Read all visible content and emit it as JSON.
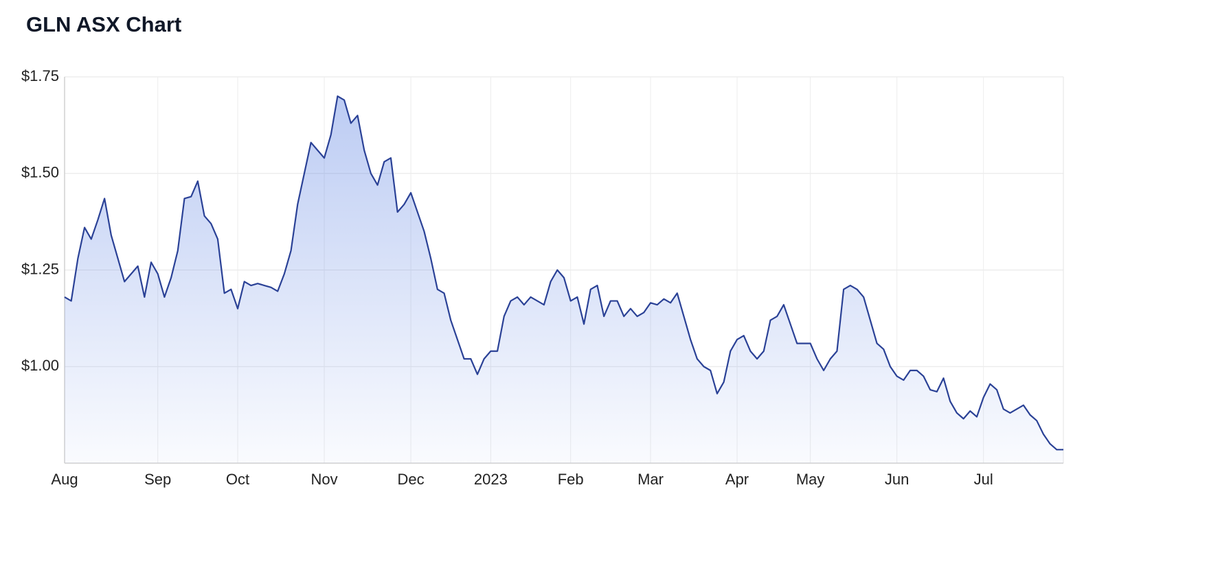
{
  "chart_data": {
    "type": "area-line",
    "title": "GLN ASX Chart",
    "categories": [
      "Aug",
      null,
      null,
      null,
      null,
      null,
      null,
      null,
      null,
      null,
      null,
      null,
      null,
      null,
      "Sep",
      null,
      null,
      null,
      null,
      null,
      null,
      null,
      null,
      null,
      null,
      null,
      "Oct",
      null,
      null,
      null,
      null,
      null,
      null,
      null,
      null,
      null,
      null,
      null,
      null,
      "Nov",
      null,
      null,
      null,
      null,
      null,
      null,
      null,
      null,
      null,
      null,
      null,
      null,
      "Dec",
      null,
      null,
      null,
      null,
      null,
      null,
      null,
      null,
      null,
      null,
      null,
      "2023",
      null,
      null,
      null,
      null,
      null,
      null,
      null,
      null,
      null,
      null,
      null,
      "Feb",
      null,
      null,
      null,
      null,
      null,
      null,
      null,
      null,
      null,
      null,
      null,
      "Mar",
      null,
      null,
      null,
      null,
      null,
      null,
      null,
      null,
      null,
      null,
      null,
      null,
      "Apr",
      null,
      null,
      null,
      null,
      null,
      null,
      null,
      null,
      null,
      null,
      "May",
      null,
      null,
      null,
      null,
      null,
      null,
      null,
      null,
      null,
      null,
      null,
      null,
      "Jun",
      null,
      null,
      null,
      null,
      null,
      null,
      null,
      null,
      null,
      null,
      null,
      null,
      "Jul",
      null,
      null,
      null,
      null,
      null,
      null,
      null,
      null,
      null,
      null,
      null,
      null
    ],
    "values": [
      1.18,
      1.17,
      1.28,
      1.36,
      1.33,
      1.38,
      1.435,
      1.34,
      1.28,
      1.22,
      1.24,
      1.26,
      1.18,
      1.27,
      1.24,
      1.18,
      1.23,
      1.3,
      1.435,
      1.44,
      1.48,
      1.39,
      1.37,
      1.33,
      1.19,
      1.2,
      1.15,
      1.22,
      1.21,
      1.215,
      1.21,
      1.205,
      1.195,
      1.24,
      1.3,
      1.42,
      1.5,
      1.58,
      1.56,
      1.54,
      1.6,
      1.7,
      1.69,
      1.63,
      1.65,
      1.56,
      1.5,
      1.47,
      1.53,
      1.54,
      1.4,
      1.42,
      1.45,
      1.4,
      1.35,
      1.28,
      1.2,
      1.19,
      1.12,
      1.07,
      1.02,
      1.02,
      0.98,
      1.02,
      1.04,
      1.04,
      1.13,
      1.17,
      1.18,
      1.16,
      1.18,
      1.17,
      1.16,
      1.22,
      1.25,
      1.23,
      1.17,
      1.18,
      1.11,
      1.2,
      1.21,
      1.13,
      1.17,
      1.17,
      1.13,
      1.15,
      1.13,
      1.14,
      1.165,
      1.16,
      1.175,
      1.165,
      1.19,
      1.13,
      1.07,
      1.02,
      1.0,
      0.99,
      0.93,
      0.96,
      1.04,
      1.07,
      1.08,
      1.04,
      1.02,
      1.04,
      1.12,
      1.13,
      1.16,
      1.11,
      1.06,
      1.06,
      1.06,
      1.02,
      0.99,
      1.02,
      1.04,
      1.2,
      1.21,
      1.2,
      1.18,
      1.12,
      1.06,
      1.045,
      1.0,
      0.975,
      0.965,
      0.99,
      0.99,
      0.975,
      0.94,
      0.935,
      0.97,
      0.91,
      0.88,
      0.865,
      0.885,
      0.87,
      0.92,
      0.955,
      0.94,
      0.89,
      0.88,
      0.89,
      0.9,
      0.875,
      0.86,
      0.825,
      0.8,
      0.785,
      0.785
    ],
    "color": "#2a4196",
    "ylim": [
      0.75,
      1.75
    ],
    "yticks": [
      {
        "value": 1.0,
        "label": "$1.00"
      },
      {
        "value": 1.25,
        "label": "$1.25"
      },
      {
        "value": 1.5,
        "label": "$1.50"
      },
      {
        "value": 1.75,
        "label": "$1.75"
      }
    ],
    "grid": true
  }
}
